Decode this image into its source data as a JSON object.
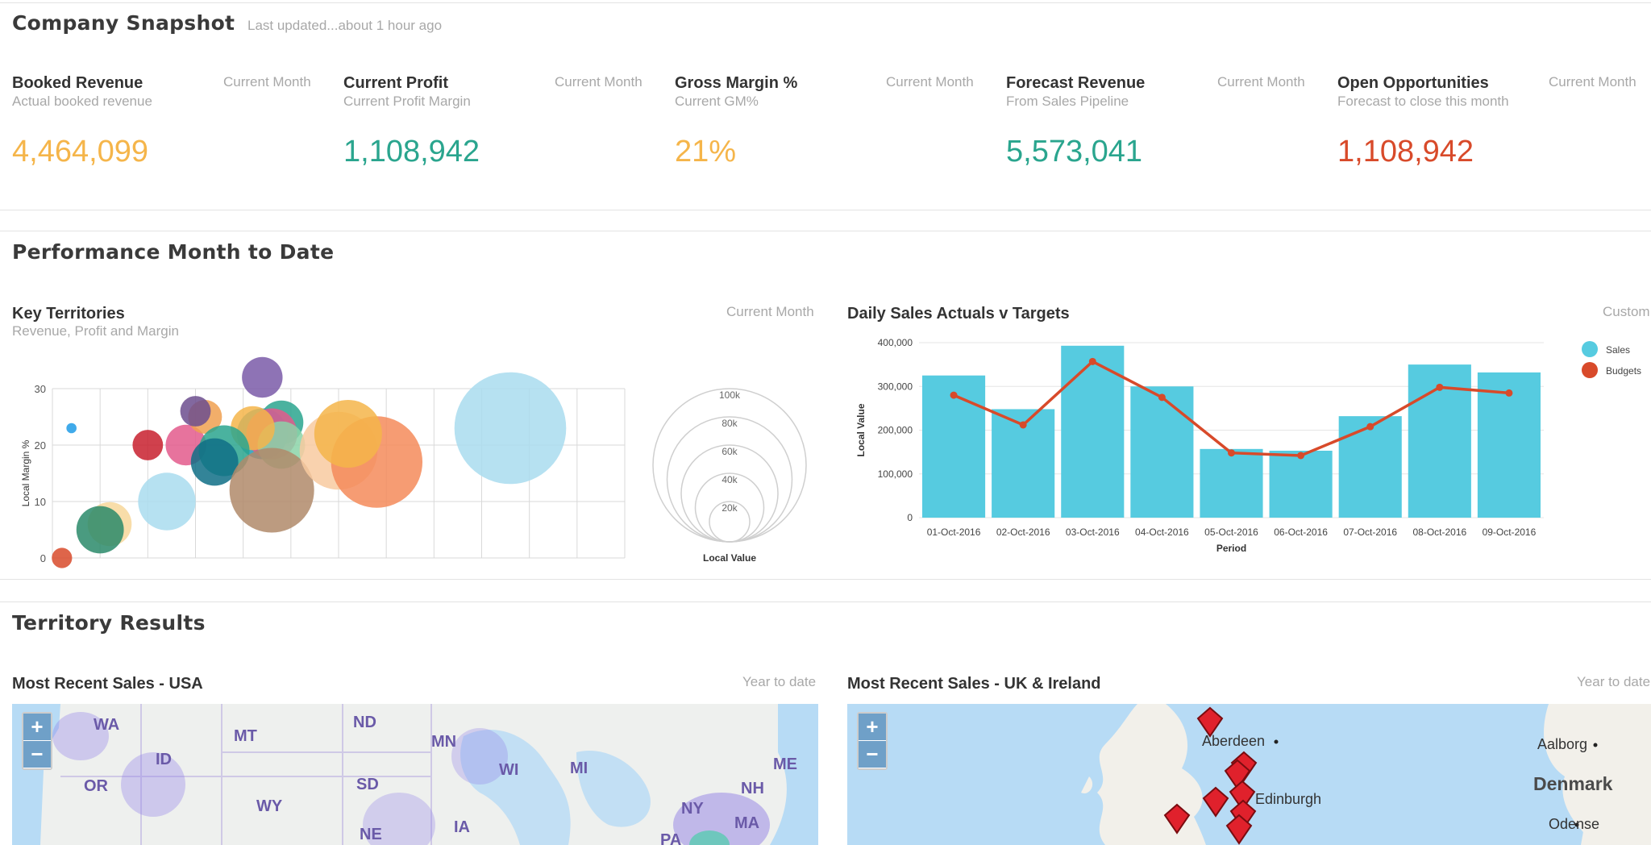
{
  "header": {
    "title": "Company Snapshot",
    "updated": "Last updated...about 1 hour ago"
  },
  "kpis": [
    {
      "title": "Booked Revenue",
      "subtitle": "Actual booked revenue",
      "period": "Current Month",
      "value": "4,464,099",
      "color": "#f5b54a"
    },
    {
      "title": "Current Profit",
      "subtitle": "Current Profit Margin",
      "period": "Current Month",
      "value": "1,108,942",
      "color": "#2aa58e"
    },
    {
      "title": "Gross Margin %",
      "subtitle": "Current GM%",
      "period": "Current Month",
      "value": "21%",
      "color": "#f5b54a"
    },
    {
      "title": "Forecast Revenue",
      "subtitle": "From Sales Pipeline",
      "period": "Current Month",
      "value": "5,573,041",
      "color": "#2aa58e"
    },
    {
      "title": "Open Opportunities",
      "subtitle": "Forecast to close this month",
      "period": "Current Month",
      "value": "1,108,942",
      "color": "#d84a2a"
    }
  ],
  "performance": {
    "title": "Performance Month to Date",
    "bubble_panel": {
      "title": "Key Territories",
      "subtitle": "Revenue, Profit and Margin",
      "period": "Current Month"
    },
    "bar_panel": {
      "title": "Daily Sales Actuals v Targets",
      "period": "Custom"
    }
  },
  "territory": {
    "title": "Territory Results",
    "usa": {
      "title": "Most Recent Sales - USA",
      "period": "Year to date"
    },
    "uk": {
      "title": "Most Recent Sales - UK & Ireland",
      "period": "Year to date"
    }
  },
  "map_controls": {
    "zoom_in": "+",
    "zoom_out": "−"
  },
  "usa_states": [
    "WA",
    "MT",
    "ND",
    "MN",
    "ID",
    "OR",
    "SD",
    "WI",
    "MI",
    "WY",
    "NE",
    "IA",
    "NY",
    "ME",
    "NH",
    "MA",
    "PA"
  ],
  "uk_places": [
    "Aberdeen",
    "Edinburgh",
    "Aalborg",
    "Denmark",
    "Odense"
  ],
  "chart_data": [
    {
      "type": "scatter",
      "title": "Key Territories",
      "ylabel": "Local Margin %",
      "size_legend_title": "Local Value",
      "ylim": [
        0,
        30
      ],
      "yticks": [
        0,
        10,
        20,
        30
      ],
      "size_legend_ticks": [
        "20k",
        "40k",
        "60k",
        "80k",
        "100k"
      ],
      "points": [
        {
          "x": 1,
          "y": 23,
          "size": 3,
          "color": "#1e9be6"
        },
        {
          "x": 0.5,
          "y": 0,
          "size": 6,
          "color": "#d84a2a"
        },
        {
          "x": 3,
          "y": 6,
          "size": 13,
          "color": "#f7d79a"
        },
        {
          "x": 2.5,
          "y": 5,
          "size": 14,
          "color": "#2a8a6a"
        },
        {
          "x": 6,
          "y": 10,
          "size": 17,
          "color": "#a9dcef"
        },
        {
          "x": 5,
          "y": 20,
          "size": 9,
          "color": "#c8202e"
        },
        {
          "x": 7,
          "y": 20,
          "size": 12,
          "color": "#e35a8c"
        },
        {
          "x": 8,
          "y": 25,
          "size": 10,
          "color": "#f0a050"
        },
        {
          "x": 7.5,
          "y": 26,
          "size": 9,
          "color": "#6c4e8e"
        },
        {
          "x": 11,
          "y": 32,
          "size": 12,
          "color": "#7a5aa8"
        },
        {
          "x": 12,
          "y": 24,
          "size": 13,
          "color": "#2aa58e"
        },
        {
          "x": 11,
          "y": 22,
          "size": 15,
          "color": "#1e9bbc"
        },
        {
          "x": 11.5,
          "y": 22,
          "size": 15,
          "color": "#e35a8c"
        },
        {
          "x": 12,
          "y": 20,
          "size": 14,
          "color": "#8bd3a8"
        },
        {
          "x": 10.5,
          "y": 23,
          "size": 13,
          "color": "#f5b54a"
        },
        {
          "x": 9,
          "y": 19,
          "size": 15,
          "color": "#2aa58e"
        },
        {
          "x": 8.5,
          "y": 17,
          "size": 14,
          "color": "#0f6e86"
        },
        {
          "x": 11.5,
          "y": 12,
          "size": 25,
          "color": "#b0896a"
        },
        {
          "x": 15,
          "y": 19,
          "size": 23,
          "color": "#f8caa0"
        },
        {
          "x": 17,
          "y": 17,
          "size": 27,
          "color": "#f58b5a"
        },
        {
          "x": 15.5,
          "y": 22,
          "size": 20,
          "color": "#f5b54a"
        },
        {
          "x": 24,
          "y": 23,
          "size": 33,
          "color": "#a9dcef"
        }
      ]
    },
    {
      "type": "bar",
      "title": "Daily Sales Actuals v Targets",
      "xlabel": "Period",
      "ylabel": "Local Value",
      "ylim": [
        0,
        400000
      ],
      "yticks": [
        "0",
        "100,000",
        "200,000",
        "300,000",
        "400,000"
      ],
      "categories": [
        "01-Oct-2016",
        "02-Oct-2016",
        "03-Oct-2016",
        "04-Oct-2016",
        "05-Oct-2016",
        "06-Oct-2016",
        "07-Oct-2016",
        "08-Oct-2016",
        "09-Oct-2016"
      ],
      "series": [
        {
          "name": "Sales",
          "type": "bar",
          "color": "#56cbe0",
          "values": [
            325000,
            248000,
            393000,
            300000,
            157000,
            153000,
            232000,
            350000,
            332000
          ]
        },
        {
          "name": "Budgets",
          "type": "line",
          "color": "#d84a2a",
          "values": [
            280000,
            212000,
            357000,
            275000,
            148000,
            142000,
            208000,
            298000,
            285000
          ]
        }
      ],
      "legend": "right"
    }
  ]
}
